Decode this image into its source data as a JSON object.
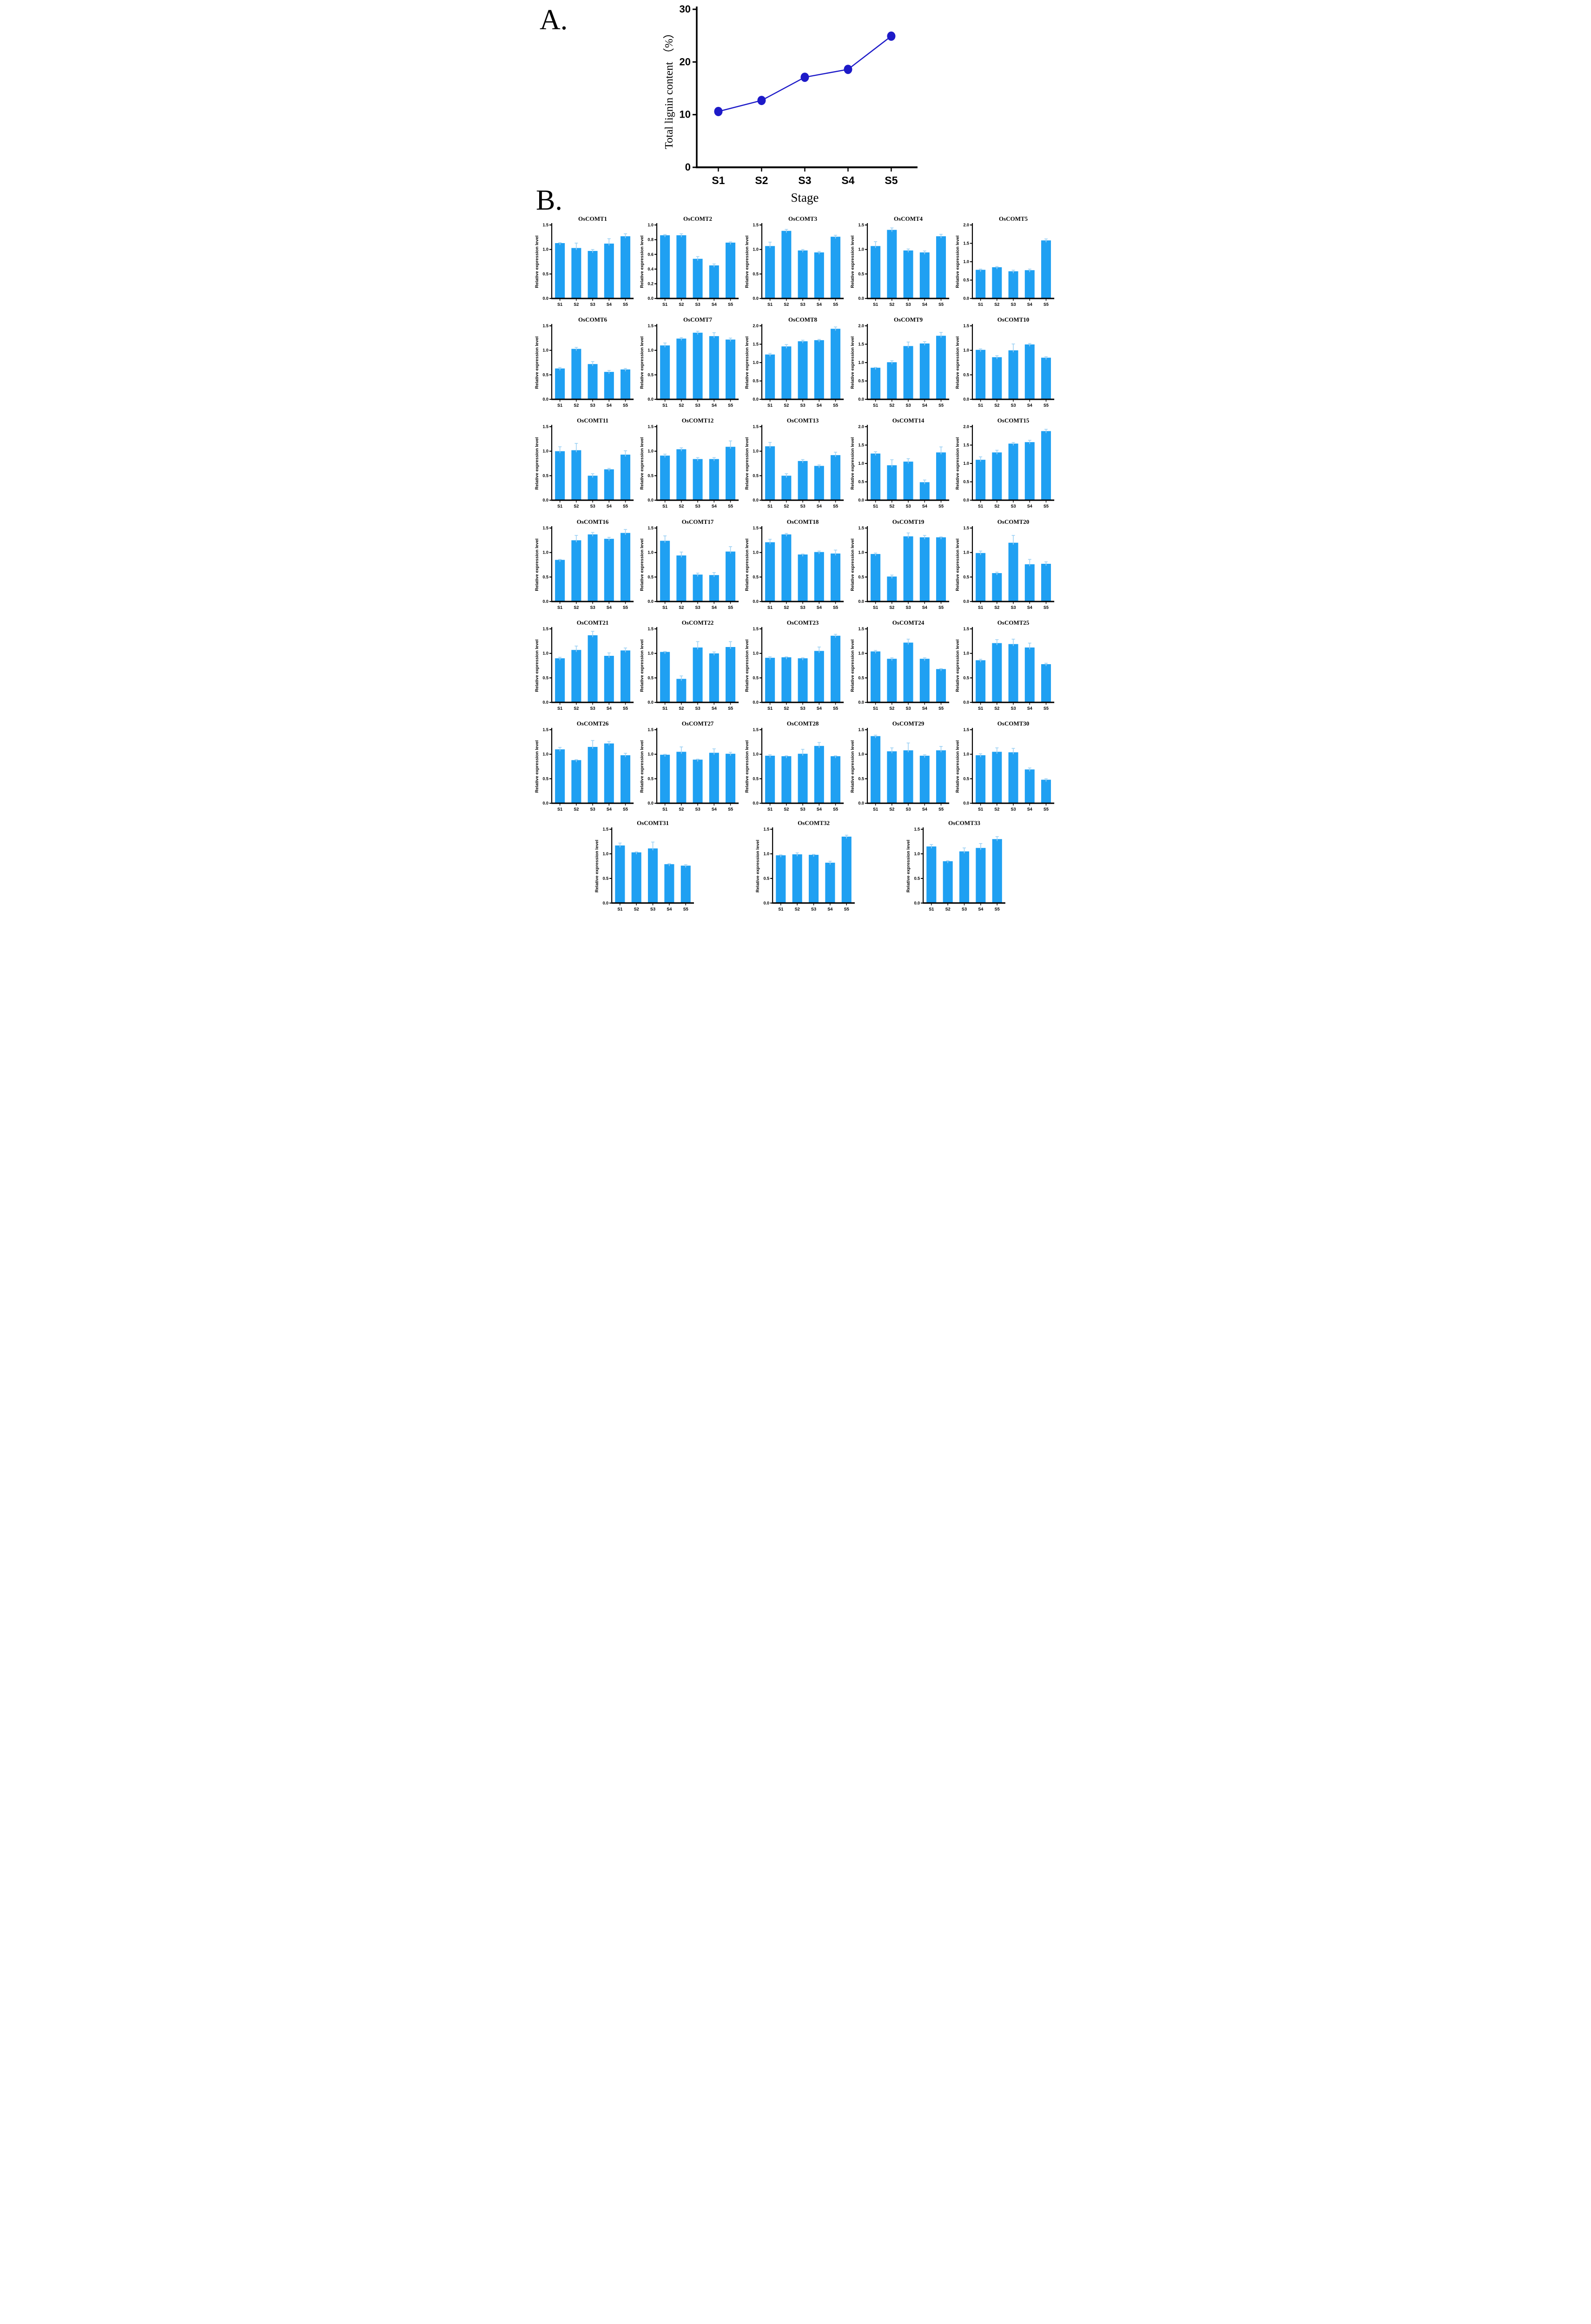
{
  "panels": {
    "a_label": "A.",
    "b_label": "B."
  },
  "colors": {
    "bar": "#1FA0F2",
    "bar_error": "#9ED2F4",
    "line": "#1D1AC8",
    "axis": "#000000",
    "background": "#ffffff"
  },
  "chart_data": [
    {
      "type": "line",
      "title": "",
      "ylabel": "Total lignin content （%）",
      "xlabel": "Stage",
      "categories": [
        "S1",
        "S2",
        "S3",
        "S4",
        "S5"
      ],
      "values": [
        10.6,
        12.7,
        17.1,
        18.6,
        24.9
      ],
      "ylim": [
        0,
        30
      ],
      "yticks": [
        0,
        10,
        20,
        30
      ],
      "tick_decimals": 0,
      "marker": "circle",
      "grid": false,
      "legend": null
    },
    {
      "type": "bar",
      "title": "OsCOMT1",
      "ylabel": "Relative expression level",
      "xlabel": "",
      "categories": [
        "S1",
        "S2",
        "S3",
        "S4",
        "S5"
      ],
      "values": [
        1.13,
        1.03,
        0.97,
        1.12,
        1.27
      ],
      "errors": [
        0.01,
        0.1,
        0.03,
        0.1,
        0.05
      ],
      "ylim": [
        0,
        1.5
      ],
      "yticks": [
        0,
        0.5,
        1,
        1.5
      ],
      "tick_decimals": 1
    },
    {
      "type": "bar",
      "title": "OsCOMT2",
      "ylabel": "Relative expression level",
      "xlabel": "",
      "categories": [
        "S1",
        "S2",
        "S3",
        "S4",
        "S5"
      ],
      "values": [
        0.86,
        0.86,
        0.54,
        0.45,
        0.76
      ],
      "errors": [
        0.01,
        0.02,
        0.03,
        0.02,
        0.01
      ],
      "ylim": [
        0,
        1.0
      ],
      "yticks": [
        0,
        0.2,
        0.4,
        0.6,
        0.8,
        1.0
      ],
      "tick_decimals": 1
    },
    {
      "type": "bar",
      "title": "OsCOMT3",
      "ylabel": "Relative expression level",
      "xlabel": "",
      "categories": [
        "S1",
        "S2",
        "S3",
        "S4",
        "S5"
      ],
      "values": [
        1.07,
        1.38,
        0.98,
        0.94,
        1.26
      ],
      "errors": [
        0.08,
        0.03,
        0.02,
        0.02,
        0.03
      ],
      "ylim": [
        0,
        1.5
      ],
      "yticks": [
        0,
        0.5,
        1,
        1.5
      ],
      "tick_decimals": 1
    },
    {
      "type": "bar",
      "title": "OsCOMT4",
      "ylabel": "Relative expression level",
      "xlabel": "",
      "categories": [
        "S1",
        "S2",
        "S3",
        "S4",
        "S5"
      ],
      "values": [
        1.07,
        1.4,
        0.98,
        0.94,
        1.27
      ],
      "errors": [
        0.09,
        0.04,
        0.03,
        0.03,
        0.04
      ],
      "ylim": [
        0,
        1.5
      ],
      "yticks": [
        0,
        0.5,
        1,
        1.5
      ],
      "tick_decimals": 1
    },
    {
      "type": "bar",
      "title": "OsCOMT5",
      "ylabel": "Relative expression level",
      "xlabel": "",
      "categories": [
        "S1",
        "S2",
        "S3",
        "S4",
        "S5"
      ],
      "values": [
        0.78,
        0.85,
        0.74,
        0.77,
        1.58
      ],
      "errors": [
        0.02,
        0.02,
        0.03,
        0.03,
        0.04
      ],
      "ylim": [
        0,
        2.0
      ],
      "yticks": [
        0,
        0.5,
        1,
        1.5,
        2.0
      ],
      "tick_decimals": 1
    },
    {
      "type": "bar",
      "title": "OsCOMT6",
      "ylabel": "Relative expression level",
      "xlabel": "",
      "categories": [
        "S1",
        "S2",
        "S3",
        "S4",
        "S5"
      ],
      "values": [
        0.63,
        1.03,
        0.72,
        0.56,
        0.61
      ],
      "errors": [
        0.02,
        0.03,
        0.05,
        0.03,
        0.02
      ],
      "ylim": [
        0,
        1.5
      ],
      "yticks": [
        0,
        0.5,
        1,
        1.5
      ],
      "tick_decimals": 1
    },
    {
      "type": "bar",
      "title": "OsCOMT7",
      "ylabel": "Relative expression level",
      "xlabel": "",
      "categories": [
        "S1",
        "S2",
        "S3",
        "S4",
        "S5"
      ],
      "values": [
        1.1,
        1.24,
        1.36,
        1.29,
        1.22
      ],
      "errors": [
        0.05,
        0.02,
        0.03,
        0.07,
        0.03
      ],
      "ylim": [
        0,
        1.5
      ],
      "yticks": [
        0,
        0.5,
        1,
        1.5
      ],
      "tick_decimals": 1
    },
    {
      "type": "bar",
      "title": "OsCOMT8",
      "ylabel": "Relative expression level",
      "xlabel": "",
      "categories": [
        "S1",
        "S2",
        "S3",
        "S4",
        "S5"
      ],
      "values": [
        1.22,
        1.44,
        1.58,
        1.61,
        1.92
      ],
      "errors": [
        0.03,
        0.05,
        0.03,
        0.02,
        0.05
      ],
      "ylim": [
        0,
        2.0
      ],
      "yticks": [
        0,
        0.5,
        1,
        1.5,
        2.0
      ],
      "tick_decimals": 1
    },
    {
      "type": "bar",
      "title": "OsCOMT9",
      "ylabel": "Relative expression level",
      "xlabel": "",
      "categories": [
        "S1",
        "S2",
        "S3",
        "S4",
        "S5"
      ],
      "values": [
        0.86,
        1.01,
        1.45,
        1.52,
        1.73
      ],
      "errors": [
        0.01,
        0.04,
        0.11,
        0.05,
        0.09
      ],
      "ylim": [
        0,
        2.0
      ],
      "yticks": [
        0,
        0.5,
        1,
        1.5,
        2.0
      ],
      "tick_decimals": 1
    },
    {
      "type": "bar",
      "title": "OsCOMT10",
      "ylabel": "Relative expression level",
      "xlabel": "",
      "categories": [
        "S1",
        "S2",
        "S3",
        "S4",
        "S5"
      ],
      "values": [
        1.01,
        0.86,
        1.0,
        1.12,
        0.85
      ],
      "errors": [
        0.02,
        0.03,
        0.13,
        0.02,
        0.02
      ],
      "ylim": [
        0,
        1.5
      ],
      "yticks": [
        0,
        0.5,
        1,
        1.5
      ],
      "tick_decimals": 1
    },
    {
      "type": "bar",
      "title": "OsCOMT11",
      "ylabel": "Relative expression level",
      "xlabel": "",
      "categories": [
        "S1",
        "S2",
        "S3",
        "S4",
        "S5"
      ],
      "values": [
        1.0,
        1.02,
        0.5,
        0.63,
        0.93
      ],
      "errors": [
        0.09,
        0.14,
        0.04,
        0.02,
        0.08
      ],
      "ylim": [
        0,
        1.5
      ],
      "yticks": [
        0,
        0.5,
        1,
        1.5
      ],
      "tick_decimals": 1
    },
    {
      "type": "bar",
      "title": "OsCOMT12",
      "ylabel": "Relative expression level",
      "xlabel": "",
      "categories": [
        "S1",
        "S2",
        "S3",
        "S4",
        "S5"
      ],
      "values": [
        0.91,
        1.04,
        0.84,
        0.84,
        1.09
      ],
      "errors": [
        0.03,
        0.03,
        0.03,
        0.03,
        0.12
      ],
      "ylim": [
        0,
        1.5
      ],
      "yticks": [
        0,
        0.5,
        1,
        1.5
      ],
      "tick_decimals": 1
    },
    {
      "type": "bar",
      "title": "OsCOMT13",
      "ylabel": "Relative expression level",
      "xlabel": "",
      "categories": [
        "S1",
        "S2",
        "S3",
        "S4",
        "S5"
      ],
      "values": [
        1.1,
        0.5,
        0.8,
        0.7,
        0.92
      ],
      "errors": [
        0.08,
        0.04,
        0.03,
        0.02,
        0.06
      ],
      "ylim": [
        0,
        1.5
      ],
      "yticks": [
        0,
        0.5,
        1,
        1.5
      ],
      "tick_decimals": 1
    },
    {
      "type": "bar",
      "title": "OsCOMT14",
      "ylabel": "Relative expression level",
      "xlabel": "",
      "categories": [
        "S1",
        "S2",
        "S3",
        "S4",
        "S5"
      ],
      "values": [
        1.27,
        0.95,
        1.05,
        0.49,
        1.3
      ],
      "errors": [
        0.05,
        0.15,
        0.08,
        0.06,
        0.15
      ],
      "ylim": [
        0,
        2.0
      ],
      "yticks": [
        0,
        0.5,
        1,
        1.5,
        2.0
      ],
      "tick_decimals": 1
    },
    {
      "type": "bar",
      "title": "OsCOMT15",
      "ylabel": "Relative expression level",
      "xlabel": "",
      "categories": [
        "S1",
        "S2",
        "S3",
        "S4",
        "S5"
      ],
      "values": [
        1.1,
        1.3,
        1.54,
        1.58,
        1.88
      ],
      "errors": [
        0.08,
        0.06,
        0.03,
        0.05,
        0.05
      ],
      "ylim": [
        0,
        2.0
      ],
      "yticks": [
        0,
        0.5,
        1,
        1.5,
        2.0
      ],
      "tick_decimals": 1
    },
    {
      "type": "bar",
      "title": "OsCOMT16",
      "ylabel": "Relative expression level",
      "xlabel": "",
      "categories": [
        "S1",
        "S2",
        "S3",
        "S4",
        "S5"
      ],
      "values": [
        0.85,
        1.25,
        1.37,
        1.28,
        1.4
      ],
      "errors": [
        0.01,
        0.1,
        0.04,
        0.03,
        0.07
      ],
      "ylim": [
        0,
        1.5
      ],
      "yticks": [
        0,
        0.5,
        1,
        1.5
      ],
      "tick_decimals": 1
    },
    {
      "type": "bar",
      "title": "OsCOMT17",
      "ylabel": "Relative expression level",
      "xlabel": "",
      "categories": [
        "S1",
        "S2",
        "S3",
        "S4",
        "S5"
      ],
      "values": [
        1.24,
        0.94,
        0.55,
        0.54,
        1.02
      ],
      "errors": [
        0.1,
        0.07,
        0.03,
        0.05,
        0.1
      ],
      "ylim": [
        0,
        1.5
      ],
      "yticks": [
        0,
        0.5,
        1,
        1.5
      ],
      "tick_decimals": 1
    },
    {
      "type": "bar",
      "title": "OsCOMT18",
      "ylabel": "Relative expression level",
      "xlabel": "",
      "categories": [
        "S1",
        "S2",
        "S3",
        "S4",
        "S5"
      ],
      "values": [
        1.21,
        1.37,
        0.96,
        1.01,
        0.98
      ],
      "errors": [
        0.06,
        0.02,
        0.01,
        0.02,
        0.07
      ],
      "ylim": [
        0,
        1.5
      ],
      "yticks": [
        0,
        0.5,
        1,
        1.5
      ],
      "tick_decimals": 1
    },
    {
      "type": "bar",
      "title": "OsCOMT19",
      "ylabel": "Relative expression level",
      "xlabel": "",
      "categories": [
        "S1",
        "S2",
        "S3",
        "S4",
        "S5"
      ],
      "values": [
        0.97,
        0.51,
        1.33,
        1.31,
        1.31
      ],
      "errors": [
        0.02,
        0.03,
        0.07,
        0.04,
        0.01
      ],
      "ylim": [
        0,
        1.5
      ],
      "yticks": [
        0,
        0.5,
        1,
        1.5
      ],
      "tick_decimals": 1
    },
    {
      "type": "bar",
      "title": "OsCOMT20",
      "ylabel": "Relative expression level",
      "xlabel": "",
      "categories": [
        "S1",
        "S2",
        "S3",
        "S4",
        "S5"
      ],
      "values": [
        0.99,
        0.58,
        1.2,
        0.76,
        0.77
      ],
      "errors": [
        0.04,
        0.02,
        0.15,
        0.1,
        0.04
      ],
      "ylim": [
        0,
        1.5
      ],
      "yticks": [
        0,
        0.5,
        1,
        1.5
      ],
      "tick_decimals": 1
    },
    {
      "type": "bar",
      "title": "OsCOMT21",
      "ylabel": "Relative expression level",
      "xlabel": "",
      "categories": [
        "S1",
        "S2",
        "S3",
        "S4",
        "S5"
      ],
      "values": [
        0.9,
        1.07,
        1.37,
        0.95,
        1.06
      ],
      "errors": [
        0.02,
        0.08,
        0.08,
        0.06,
        0.05
      ],
      "ylim": [
        0,
        1.5
      ],
      "yticks": [
        0,
        0.5,
        1,
        1.5
      ],
      "tick_decimals": 1
    },
    {
      "type": "bar",
      "title": "OsCOMT22",
      "ylabel": "Relative expression level",
      "xlabel": "",
      "categories": [
        "S1",
        "S2",
        "S3",
        "S4",
        "S5"
      ],
      "values": [
        1.03,
        0.48,
        1.12,
        1.0,
        1.13
      ],
      "errors": [
        0.01,
        0.06,
        0.12,
        0.03,
        0.11
      ],
      "ylim": [
        0,
        1.5
      ],
      "yticks": [
        0,
        0.5,
        1,
        1.5
      ],
      "tick_decimals": 1
    },
    {
      "type": "bar",
      "title": "OsCOMT23",
      "ylabel": "Relative expression level",
      "xlabel": "",
      "categories": [
        "S1",
        "S2",
        "S3",
        "S4",
        "S5"
      ],
      "values": [
        0.91,
        0.92,
        0.9,
        1.05,
        1.36
      ],
      "errors": [
        0.02,
        0.01,
        0.01,
        0.08,
        0.03
      ],
      "ylim": [
        0,
        1.5
      ],
      "yticks": [
        0,
        0.5,
        1,
        1.5
      ],
      "tick_decimals": 1
    },
    {
      "type": "bar",
      "title": "OsCOMT24",
      "ylabel": "Relative expression level",
      "xlabel": "",
      "categories": [
        "S1",
        "S2",
        "S3",
        "S4",
        "S5"
      ],
      "values": [
        1.04,
        0.89,
        1.22,
        0.89,
        0.68
      ],
      "errors": [
        0.02,
        0.02,
        0.07,
        0.02,
        0.01
      ],
      "ylim": [
        0,
        1.5
      ],
      "yticks": [
        0,
        0.5,
        1,
        1.5
      ],
      "tick_decimals": 1
    },
    {
      "type": "bar",
      "title": "OsCOMT25",
      "ylabel": "Relative expression level",
      "xlabel": "",
      "categories": [
        "S1",
        "S2",
        "S3",
        "S4",
        "S5"
      ],
      "values": [
        0.86,
        1.21,
        1.19,
        1.12,
        0.78
      ],
      "errors": [
        0.02,
        0.07,
        0.1,
        0.09,
        0.02
      ],
      "ylim": [
        0,
        1.5
      ],
      "yticks": [
        0,
        0.5,
        1,
        1.5
      ],
      "tick_decimals": 1
    },
    {
      "type": "bar",
      "title": "OsCOMT26",
      "ylabel": "Relative expression level",
      "xlabel": "",
      "categories": [
        "S1",
        "S2",
        "S3",
        "S4",
        "S5"
      ],
      "values": [
        1.1,
        0.88,
        1.15,
        1.22,
        0.98
      ],
      "errors": [
        0.04,
        0.01,
        0.13,
        0.04,
        0.04
      ],
      "ylim": [
        0,
        1.5
      ],
      "yticks": [
        0,
        0.5,
        1,
        1.5
      ],
      "tick_decimals": 1
    },
    {
      "type": "bar",
      "title": "OsCOMT27",
      "ylabel": "Relative expression level",
      "xlabel": "",
      "categories": [
        "S1",
        "S2",
        "S3",
        "S4",
        "S5"
      ],
      "values": [
        0.99,
        1.05,
        0.89,
        1.03,
        1.01
      ],
      "errors": [
        0.01,
        0.1,
        0.01,
        0.08,
        0.03
      ],
      "ylim": [
        0,
        1.5
      ],
      "yticks": [
        0,
        0.5,
        1,
        1.5
      ],
      "tick_decimals": 1
    },
    {
      "type": "bar",
      "title": "OsCOMT28",
      "ylabel": "Relative expression level",
      "xlabel": "",
      "categories": [
        "S1",
        "S2",
        "S3",
        "S4",
        "S5"
      ],
      "values": [
        0.97,
        0.96,
        1.01,
        1.17,
        0.96
      ],
      "errors": [
        0.02,
        0.01,
        0.09,
        0.07,
        0.01
      ],
      "ylim": [
        0,
        1.5
      ],
      "yticks": [
        0,
        0.5,
        1,
        1.5
      ],
      "tick_decimals": 1
    },
    {
      "type": "bar",
      "title": "OsCOMT29",
      "ylabel": "Relative expression level",
      "xlabel": "",
      "categories": [
        "S1",
        "S2",
        "S3",
        "S4",
        "S5"
      ],
      "values": [
        1.37,
        1.06,
        1.08,
        0.97,
        1.08
      ],
      "errors": [
        0.02,
        0.07,
        0.15,
        0.02,
        0.08
      ],
      "ylim": [
        0,
        1.5
      ],
      "yticks": [
        0,
        0.5,
        1,
        1.5
      ],
      "tick_decimals": 1
    },
    {
      "type": "bar",
      "title": "OsCOMT30",
      "ylabel": "Relative expression level",
      "xlabel": "",
      "categories": [
        "S1",
        "S2",
        "S3",
        "S4",
        "S5"
      ],
      "values": [
        0.98,
        1.05,
        1.04,
        0.69,
        0.48
      ],
      "errors": [
        0.03,
        0.08,
        0.08,
        0.03,
        0.02
      ],
      "ylim": [
        0,
        1.5
      ],
      "yticks": [
        0,
        0.5,
        1,
        1.5
      ],
      "tick_decimals": 1
    },
    {
      "type": "bar",
      "title": "OsCOMT31",
      "ylabel": "Relative expression level",
      "xlabel": "",
      "categories": [
        "S1",
        "S2",
        "S3",
        "S4",
        "S5"
      ],
      "values": [
        1.17,
        1.03,
        1.11,
        0.79,
        0.76
      ],
      "errors": [
        0.05,
        0.01,
        0.13,
        0.01,
        0.02
      ],
      "ylim": [
        0,
        1.5
      ],
      "yticks": [
        0,
        0.5,
        1,
        1.5
      ],
      "tick_decimals": 1
    },
    {
      "type": "bar",
      "title": "OsCOMT32",
      "ylabel": "Relative expression level",
      "xlabel": "",
      "categories": [
        "S1",
        "S2",
        "S3",
        "S4",
        "S5"
      ],
      "values": [
        0.97,
        0.99,
        0.98,
        0.82,
        1.35
      ],
      "errors": [
        0.01,
        0.03,
        0.01,
        0.03,
        0.03
      ],
      "ylim": [
        0,
        1.5
      ],
      "yticks": [
        0,
        0.5,
        1,
        1.5
      ],
      "tick_decimals": 1
    },
    {
      "type": "bar",
      "title": "OsCOMT33",
      "ylabel": "Relative expression level",
      "xlabel": "",
      "categories": [
        "S1",
        "S2",
        "S3",
        "S4",
        "S5"
      ],
      "values": [
        1.15,
        0.85,
        1.05,
        1.12,
        1.3
      ],
      "errors": [
        0.04,
        0.01,
        0.07,
        0.09,
        0.05
      ],
      "ylim": [
        0,
        1.5
      ],
      "yticks": [
        0,
        0.5,
        1,
        1.5
      ],
      "tick_decimals": 1
    }
  ]
}
